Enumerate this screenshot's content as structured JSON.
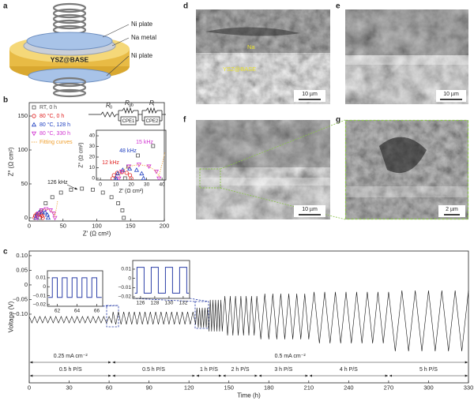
{
  "panel_labels": [
    "a",
    "b",
    "c",
    "d",
    "e",
    "f",
    "g"
  ],
  "schematic": {
    "top_label": "Ni plate",
    "middle_label": "Na metal",
    "center_text": "YSZ@BASE",
    "bottom_label": "Ni plate"
  },
  "micrographs": [
    {
      "scale_bar": "10 µm",
      "labels": [
        "Na",
        "YSZ@BASE"
      ]
    },
    {
      "scale_bar": "10 µm"
    },
    {
      "scale_bar": "10 µm"
    },
    {
      "scale_bar": "2 µm"
    }
  ],
  "chart_data": [
    {
      "type": "scatter",
      "xlabel": "Z′ (Ω cm²)",
      "ylabel": "Z″ (Ω cm²)",
      "xlim": [
        0,
        200
      ],
      "ylim": [
        -4.7,
        169.8
      ],
      "xticks": [
        0,
        50,
        100,
        150,
        200
      ],
      "yticks": [
        0,
        50,
        100,
        150
      ],
      "legend": "upper left",
      "series": [
        {
          "name": "RT, 0 h",
          "color": "#505050",
          "marker": "square",
          "x": [
            16,
            18.1,
            24.3,
            34.2,
            47,
            61.9,
            78,
            94.1,
            109,
            121.8,
            131.7,
            137.9,
            140
          ],
          "values": [
            0,
            11.1,
            21.5,
            30.4,
            37.2,
            41.5,
            43,
            41.5,
            37.2,
            30.4,
            21.5,
            11.1,
            0
          ]
        },
        {
          "name": "80 °C, 0 h",
          "color": "#e02020",
          "marker": "circle",
          "x": [
            8,
            8.8,
            11,
            14,
            17,
            19.2,
            20
          ],
          "values": [
            0,
            3,
            5.2,
            6,
            5.2,
            3,
            0
          ]
        },
        {
          "name": "80 °C, 128 h",
          "color": "#2040c0",
          "marker": "triangle-up",
          "x": [
            10,
            11.2,
            14.5,
            19,
            23.5,
            26.8,
            28
          ],
          "values": [
            0,
            4.5,
            7.8,
            9,
            7.8,
            4.5,
            0
          ]
        },
        {
          "name": "80 °C, 330 h",
          "color": "#d030d0",
          "marker": "triangle-down",
          "x": [
            12,
            13.7,
            18.5,
            25,
            31.5,
            36.3,
            38
          ],
          "values": [
            0,
            6.5,
            11.3,
            13,
            11.3,
            6.5,
            0
          ]
        },
        {
          "name": "Fitting curves",
          "color": "#f0a030",
          "marker": "dotted-line",
          "x": [
            12,
            13.7,
            18.5,
            25,
            31.5,
            36.3,
            38,
            39,
            40.5,
            42
          ],
          "values": [
            0,
            6.5,
            11.3,
            13,
            11.3,
            6.5,
            2,
            8,
            16,
            25
          ]
        }
      ],
      "annotation": "126 kHz",
      "circuit": {
        "resistors": [
          {
            "label": "R",
            "sub": "0"
          },
          {
            "label": "R",
            "sub": "gb"
          },
          {
            "label": "R",
            "sub": "i"
          }
        ],
        "elements": [
          "CPE1",
          "CPE2"
        ]
      }
    },
    {
      "type": "scatter",
      "xlabel": "Z′ (Ω cm²)",
      "ylabel": "Z″ (Ω cm²)",
      "xlim": [
        -2.6,
        42.5
      ],
      "ylim": [
        -1.5,
        45.2
      ],
      "xticks": [
        0,
        10,
        20,
        30,
        40
      ],
      "yticks": [
        0,
        10,
        20,
        30,
        40
      ],
      "annotations": [
        {
          "text": "15 kHz",
          "color": "#d030d0"
        },
        {
          "text": "48 kHz",
          "color": "#2040c0"
        },
        {
          "text": "12 kHz",
          "color": "#e02020"
        }
      ]
    },
    {
      "type": "line",
      "xlabel": "Time (h)",
      "ylabel": "Voltage (V)",
      "xlim": [
        0,
        330
      ],
      "ylim": [
        -0.335,
        0.116
      ],
      "xticks": [
        0,
        30,
        60,
        90,
        120,
        150,
        180,
        210,
        240,
        270,
        300,
        330
      ],
      "yticks": [
        {
          "value": 0.1,
          "label": "0.10"
        },
        {
          "value": 0.05,
          "label": "0.05"
        },
        0,
        {
          "value": -0.05,
          "label": "−0.05"
        },
        {
          "value": -0.1,
          "label": "−0.10"
        }
      ],
      "series": [
        {
          "color": "#111111",
          "x": [
            0,
            2,
            4,
            6,
            8,
            10,
            12,
            14,
            16,
            18,
            20,
            22,
            24,
            26,
            28,
            30,
            32,
            34,
            36,
            38,
            40,
            42,
            44,
            46,
            48,
            50,
            52,
            54,
            56,
            58,
            60,
            62,
            63,
            65,
            67,
            69,
            71,
            73,
            75,
            77,
            79,
            81,
            83,
            85,
            87,
            89,
            91,
            93,
            95,
            97,
            99,
            101,
            103,
            105,
            107,
            109,
            111,
            113,
            115,
            117,
            119,
            121,
            123,
            125,
            126,
            127,
            128,
            129,
            130,
            131,
            132,
            133,
            134,
            135,
            136,
            137,
            138,
            139,
            140,
            141,
            142,
            143,
            144,
            145,
            147,
            149,
            151,
            153,
            155,
            157,
            159,
            161,
            163,
            165,
            167,
            169,
            171,
            174,
            177,
            180,
            183,
            186,
            189,
            192,
            195,
            198,
            201,
            204,
            207,
            210,
            214,
            218,
            222,
            226,
            230,
            234,
            238,
            242,
            246,
            250,
            254,
            258,
            262,
            266,
            270,
            275,
            280,
            285,
            290,
            295,
            300,
            305,
            310,
            315,
            320,
            325,
            330
          ],
          "values": [
            -0.108,
            -0.13,
            -0.108,
            -0.13,
            -0.108,
            -0.13,
            -0.108,
            -0.13,
            -0.108,
            -0.13,
            -0.108,
            -0.13,
            -0.108,
            -0.13,
            -0.108,
            -0.13,
            -0.108,
            -0.13,
            -0.108,
            -0.13,
            -0.108,
            -0.13,
            -0.108,
            -0.13,
            -0.108,
            -0.13,
            -0.108,
            -0.13,
            -0.108,
            -0.13,
            -0.108,
            -0.13,
            -0.092,
            -0.135,
            -0.092,
            -0.135,
            -0.092,
            -0.135,
            -0.092,
            -0.135,
            -0.092,
            -0.135,
            -0.092,
            -0.135,
            -0.092,
            -0.135,
            -0.092,
            -0.135,
            -0.092,
            -0.135,
            -0.092,
            -0.135,
            -0.092,
            -0.135,
            -0.092,
            -0.135,
            -0.092,
            -0.135,
            -0.092,
            -0.135,
            -0.092,
            -0.135,
            -0.092,
            -0.135,
            -0.078,
            -0.146,
            -0.078,
            -0.146,
            -0.078,
            -0.146,
            -0.078,
            -0.146,
            -0.078,
            -0.159,
            -0.051,
            -0.159,
            -0.051,
            -0.159,
            -0.051,
            -0.159,
            -0.051,
            -0.159,
            -0.051,
            -0.159,
            -0.038,
            -0.173,
            -0.038,
            -0.173,
            -0.038,
            -0.173,
            -0.038,
            -0.173,
            -0.038,
            -0.173,
            -0.038,
            -0.173,
            -0.038,
            -0.186,
            -0.03,
            -0.186,
            -0.03,
            -0.186,
            -0.03,
            -0.186,
            -0.03,
            -0.186,
            -0.03,
            -0.186,
            -0.03,
            -0.186,
            -0.024,
            -0.2,
            -0.024,
            -0.2,
            -0.024,
            -0.2,
            -0.024,
            -0.2,
            -0.024,
            -0.2,
            -0.024,
            -0.2,
            -0.024,
            -0.2,
            -0.024,
            -0.227,
            -0.019,
            -0.227,
            -0.019,
            -0.227,
            -0.019,
            -0.227,
            -0.019,
            -0.227,
            -0.019,
            -0.227,
            -0.019
          ]
        }
      ],
      "annotations": {
        "current": [
          {
            "text": "0.25 mA cm⁻²",
            "x": [
              0,
              62
            ]
          },
          {
            "text": "0.5 mA cm⁻²",
            "x": [
              62,
              330
            ]
          }
        ],
        "period": [
          {
            "text": "0.5 h P/S",
            "x": [
              0,
              62
            ]
          },
          {
            "text": "0.5 h P/S",
            "x": [
              62,
              125
            ]
          },
          {
            "text": "1 h P/S",
            "x": [
              125,
              145
            ]
          },
          {
            "text": "2 h P/S",
            "x": [
              145,
              172
            ]
          },
          {
            "text": "3 h P/S",
            "x": [
              172,
              210
            ]
          },
          {
            "text": "4 h P/S",
            "x": [
              210,
              270
            ]
          },
          {
            "text": "5 h P/S",
            "x": [
              270,
              330
            ]
          }
        ]
      }
    },
    {
      "type": "line",
      "xlim": [
        61,
        66.6
      ],
      "ylim": [
        -0.0219,
        0.0179
      ],
      "xticks": [
        62,
        64,
        66
      ],
      "yticks": [
        {
          "value": 0.01,
          "label": "0.01"
        },
        0,
        {
          "value": -0.01,
          "label": "−0.01"
        },
        {
          "value": -0.02,
          "label": "−0.02"
        }
      ],
      "series": [
        {
          "color": "#2b3fa8",
          "x": [
            61.1,
            61.5,
            61.5,
            62,
            62,
            62.5,
            62.5,
            63,
            63,
            63.5,
            63.5,
            64,
            64,
            64.5,
            64.5,
            65,
            65,
            65.5,
            65.5,
            66,
            66,
            66.5
          ],
          "values": [
            -0.012,
            -0.012,
            0.01,
            0.01,
            -0.012,
            -0.012,
            0.01,
            0.01,
            -0.012,
            -0.012,
            0.01,
            0.01,
            -0.012,
            -0.012,
            0.01,
            0.01,
            -0.012,
            -0.012,
            0.01,
            0.01,
            -0.012,
            -0.012
          ]
        }
      ]
    },
    {
      "type": "line",
      "xlim": [
        124.9,
        132.9
      ],
      "ylim": [
        -0.0217,
        0.0194
      ],
      "xticks": [
        126,
        128,
        130,
        132
      ],
      "yticks": [
        {
          "value": 0.01,
          "label": "0.01"
        },
        0,
        {
          "value": -0.01,
          "label": "−0.01"
        },
        {
          "value": -0.02,
          "label": "−0.02"
        }
      ],
      "series": [
        {
          "color": "#2b3fa8",
          "x": [
            125.2,
            125.5,
            125.5,
            126.5,
            126.5,
            127.5,
            127.5,
            128.5,
            128.5,
            129.5,
            129.5,
            130.5,
            130.5,
            131.5,
            131.5,
            132.5,
            132.5,
            132.8
          ],
          "values": [
            -0.016,
            -0.016,
            0.012,
            0.012,
            -0.016,
            -0.016,
            0.012,
            0.012,
            -0.016,
            -0.016,
            0.012,
            0.012,
            -0.016,
            -0.016,
            0.012,
            0.012,
            -0.016,
            -0.016
          ]
        }
      ]
    }
  ]
}
